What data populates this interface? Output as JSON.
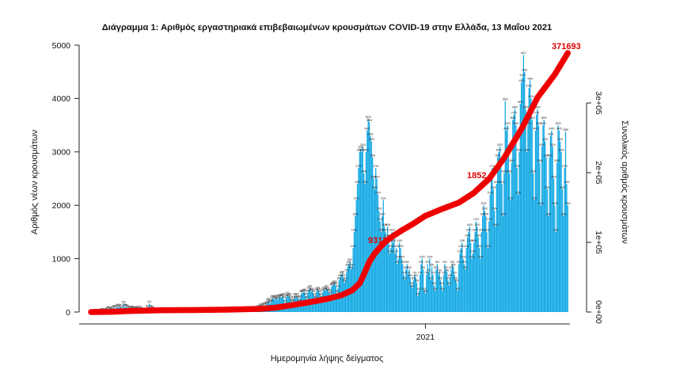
{
  "chart_data": {
    "type": "bar",
    "title": "Διάγραμμα 1: Αριθμός εργαστηριακά επιβεβαιωμένων κρουσμάτων COVID-19 στην Ελλάδα, 13 Μαΐου 2021",
    "xlabel": "Ημερομηνία λήψης δείγματος",
    "ylabel": "Αριθμός νέων κρουσμάτων",
    "y2label": "Συνολικός αριθμός κρουσμάτων",
    "xlim": [
      "2020-02-15",
      "2021-05-15"
    ],
    "x_ticks": [
      {
        "date": "2021-01-01",
        "label": "2021"
      }
    ],
    "ylim": [
      0,
      5000
    ],
    "y_ticks": [
      0,
      1000,
      2000,
      3000,
      4000,
      5000
    ],
    "y2lim": [
      0,
      383000
    ],
    "y2_ticks": [
      {
        "value": 0,
        "label": "0e+00"
      },
      {
        "value": 100000,
        "label": "1e+05"
      },
      {
        "value": 200000,
        "label": "2e+05"
      },
      {
        "value": 300000,
        "label": "3e+05"
      }
    ],
    "grid": false,
    "legend": "none",
    "colors": {
      "daily_bars": "#12a9e4",
      "cumulative_line": "#ee0000",
      "annotations": "#e00000",
      "axes": "#222222"
    },
    "daily_cases": {
      "2020-03": [
        2,
        4,
        4,
        3,
        7,
        9,
        20,
        20,
        15,
        14,
        30,
        42,
        55,
        38,
        32,
        40,
        65,
        70,
        82,
        57,
        94,
        100,
        82,
        95,
        50,
        71,
        155,
        100,
        95,
        90,
        82
      ],
      "2020-04": [
        65,
        50,
        60,
        62,
        55,
        60,
        40,
        56,
        55,
        38,
        70,
        40,
        45,
        30,
        20,
        25,
        14,
        80,
        50,
        161,
        78,
        62,
        58,
        41,
        20,
        15,
        17,
        12,
        25,
        15
      ],
      "2020-05": [
        10,
        5,
        8,
        4,
        3,
        8,
        12,
        5,
        10,
        5,
        3,
        15,
        12,
        8,
        5,
        8,
        4,
        3,
        3,
        4,
        10,
        11,
        25,
        20,
        12,
        15,
        10,
        9,
        20,
        8,
        5
      ],
      "2020-06": [
        5,
        3,
        10,
        9,
        15,
        11,
        20,
        14,
        7,
        8,
        5,
        3,
        9,
        12,
        15,
        11,
        10,
        22,
        18,
        14,
        14,
        9,
        13,
        17,
        21,
        22,
        17,
        9,
        10,
        15
      ],
      "2020-07": [
        20,
        25,
        30,
        17,
        10,
        26,
        30,
        48,
        36,
        42,
        33,
        28,
        40,
        32,
        22,
        30,
        28,
        33,
        40,
        30,
        26,
        22,
        30,
        28,
        42,
        50,
        38,
        36,
        60,
        80,
        75
      ],
      "2020-08": [
        100,
        110,
        90,
        120,
        121,
        130,
        150,
        200,
        210,
        160,
        180,
        260,
        255,
        230,
        250,
        270,
        220,
        260,
        290,
        270,
        280,
        300,
        240,
        170,
        280,
        320,
        290,
        300,
        250,
        200,
        180
      ],
      "2020-09": [
        240,
        300,
        260,
        300,
        250,
        190,
        260,
        350,
        360,
        370,
        380,
        300,
        240,
        360,
        420,
        450,
        380,
        400,
        350,
        300,
        250,
        380,
        420,
        400,
        350,
        300,
        250,
        380,
        420,
        400
      ],
      "2020-10": [
        450,
        420,
        380,
        370,
        330,
        480,
        500,
        520,
        540,
        500,
        350,
        450,
        600,
        650,
        700,
        720,
        650,
        550,
        600,
        750,
        850,
        900,
        950,
        800,
        850,
        1200,
        1500,
        1800,
        2100,
        2400,
        2700
      ],
      "2020-11": [
        3000,
        3050,
        3000,
        3100,
        2600,
        2400,
        3000,
        3400,
        3620,
        3560,
        3300,
        3200,
        2900,
        2500,
        2300,
        2700,
        2500,
        2200,
        1900,
        1700,
        1500,
        1800,
        2100,
        1600,
        1500,
        1400,
        1600,
        1300,
        1100,
        1200
      ],
      "2020-12": [
        1500,
        1300,
        1400,
        1100,
        1200,
        900,
        1000,
        1300,
        1200,
        1000,
        900,
        700,
        600,
        800,
        900,
        700,
        800,
        650,
        500,
        450,
        600,
        700,
        650,
        550,
        300,
        400,
        700,
        900,
        1000,
        800,
        400
      ],
      "2021-01": [
        350,
        700,
        900,
        750,
        1000,
        600,
        850,
        700,
        500,
        400,
        800,
        900,
        700,
        750,
        600,
        500,
        400,
        700,
        900,
        800,
        750,
        600,
        500,
        650,
        800,
        900,
        850,
        700,
        600,
        550,
        400
      ],
      "2021-02": [
        900,
        1100,
        1200,
        1300,
        1000,
        900,
        800,
        1200,
        1400,
        1500,
        1600,
        1300,
        1000,
        1100,
        1300,
        1500,
        1700,
        1600,
        1400,
        1200,
        1000,
        1500,
        1800,
        2000,
        1900,
        1800,
        1500,
        1200
      ],
      "2021-03": [
        1700,
        2200,
        2500,
        2700,
        2300,
        1900,
        1600,
        2400,
        2900,
        3000,
        3100,
        2800,
        2400,
        1800,
        2600,
        3952,
        3400,
        3500,
        3000,
        2600,
        2100,
        2800,
        3600,
        3700,
        3800,
        3500,
        2700,
        2200,
        3000,
        3900,
        4300
      ],
      "2021-04": [
        4400,
        4817,
        4500,
        3800,
        3000,
        3500,
        4200,
        4340,
        4000,
        3600,
        2600,
        2100,
        3400,
        3700,
        3800,
        3500,
        2800,
        2000,
        3100,
        3500,
        3600,
        3200,
        2900,
        2300,
        1800,
        2900,
        3300,
        3400,
        3100,
        2500
      ],
      "2021-05": [
        2000,
        1500,
        2800,
        3500,
        3400,
        3200,
        3000,
        2300,
        1800,
        2700,
        3380,
        2400,
        2000
      ]
    },
    "cumulative_cases": [
      {
        "date": "2020-02-26",
        "value": 0
      },
      {
        "date": "2020-03-15",
        "value": 230
      },
      {
        "date": "2020-04-01",
        "value": 1400
      },
      {
        "date": "2020-05-01",
        "value": 2600
      },
      {
        "date": "2020-06-01",
        "value": 2900
      },
      {
        "date": "2020-07-01",
        "value": 3400
      },
      {
        "date": "2020-08-01",
        "value": 4500
      },
      {
        "date": "2020-08-15",
        "value": 6200
      },
      {
        "date": "2020-09-01",
        "value": 10300
      },
      {
        "date": "2020-09-15",
        "value": 14000
      },
      {
        "date": "2020-10-01",
        "value": 18500
      },
      {
        "date": "2020-10-15",
        "value": 24000
      },
      {
        "date": "2020-10-25",
        "value": 31000
      },
      {
        "date": "2020-11-01",
        "value": 41000
      },
      {
        "date": "2020-11-05",
        "value": 54000
      },
      {
        "date": "2020-11-10",
        "value": 72000
      },
      {
        "date": "2020-11-15",
        "value": 84000
      },
      {
        "date": "2020-11-20",
        "value": 93000
      },
      {
        "date": "2020-11-25",
        "value": 101000
      },
      {
        "date": "2020-12-01",
        "value": 108000
      },
      {
        "date": "2020-12-10",
        "value": 117000
      },
      {
        "date": "2020-12-20",
        "value": 126000
      },
      {
        "date": "2021-01-01",
        "value": 138000
      },
      {
        "date": "2021-01-15",
        "value": 147000
      },
      {
        "date": "2021-02-01",
        "value": 157000
      },
      {
        "date": "2021-02-15",
        "value": 171000
      },
      {
        "date": "2021-03-01",
        "value": 191000
      },
      {
        "date": "2021-03-15",
        "value": 221000
      },
      {
        "date": "2021-04-01",
        "value": 265000
      },
      {
        "date": "2021-04-15",
        "value": 308000
      },
      {
        "date": "2021-05-01",
        "value": 341000
      },
      {
        "date": "2021-05-13",
        "value": 371693
      }
    ],
    "annotations": [
      "9313",
      "1852",
      "371693"
    ]
  }
}
